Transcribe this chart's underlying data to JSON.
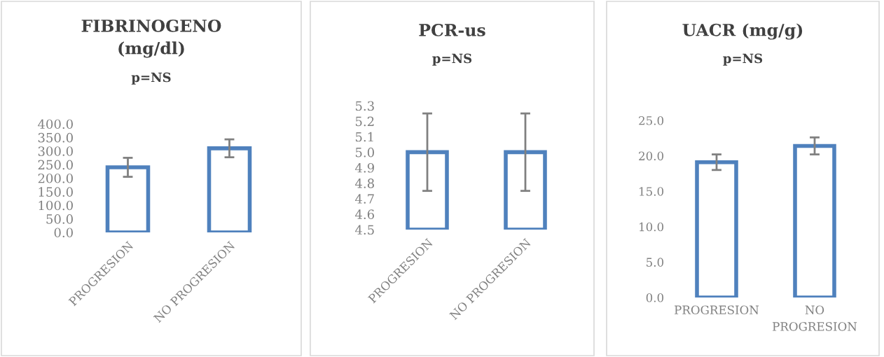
{
  "chart_data": [
    {
      "type": "bar",
      "title": "FIBRINOGENO\n(mg/dl)",
      "subtitle": "p=NS",
      "categories": [
        "PROGRESION",
        "NO PROGRESION"
      ],
      "values": [
        240,
        310
      ],
      "errors": [
        35,
        33
      ],
      "color": "#4f81bd",
      "ylim": [
        0,
        400
      ],
      "yticks": [
        {
          "value": 0,
          "label": "0.0"
        },
        {
          "value": 50,
          "label": "50.0"
        },
        {
          "value": 100,
          "label": "100.0"
        },
        {
          "value": 150,
          "label": "150.0"
        },
        {
          "value": 200,
          "label": "200.0"
        },
        {
          "value": 250,
          "label": "250.0"
        },
        {
          "value": 300,
          "label": "300.0"
        },
        {
          "value": 350,
          "label": "350.0"
        },
        {
          "value": 400,
          "label": "400.0"
        }
      ],
      "grid": false,
      "legend": false
    },
    {
      "type": "bar",
      "title": "PCR-us",
      "subtitle": "p=NS",
      "categories": [
        "PROGRESION",
        "NO PROGRESION"
      ],
      "values": [
        5.0,
        5.0
      ],
      "errors": [
        0.25,
        0.25
      ],
      "color": "#4f81bd",
      "ylim": [
        4.5,
        5.3
      ],
      "yticks": [
        4.5,
        4.6,
        4.7,
        4.8,
        4.9,
        {
          "value": 5.0,
          "label": "5.0"
        },
        5.1,
        5.2,
        5.3
      ],
      "grid": false,
      "legend": false
    },
    {
      "type": "bar",
      "title": "UACR (mg/g)",
      "subtitle": "p=NS",
      "categories": [
        "PROGRESION",
        "NO\nPROGRESION"
      ],
      "values": [
        19.1,
        21.4
      ],
      "errors": [
        1.1,
        1.2
      ],
      "color": "#4f81bd",
      "ylim": [
        0,
        25
      ],
      "yticks": [
        {
          "value": 0,
          "label": "0.0"
        },
        {
          "value": 5,
          "label": "5.0"
        },
        {
          "value": 10,
          "label": "10.0"
        },
        {
          "value": 15,
          "label": "15.0"
        },
        {
          "value": 20,
          "label": "20.0"
        },
        {
          "value": 25,
          "label": "25.0"
        }
      ],
      "grid": false,
      "legend": false
    }
  ]
}
